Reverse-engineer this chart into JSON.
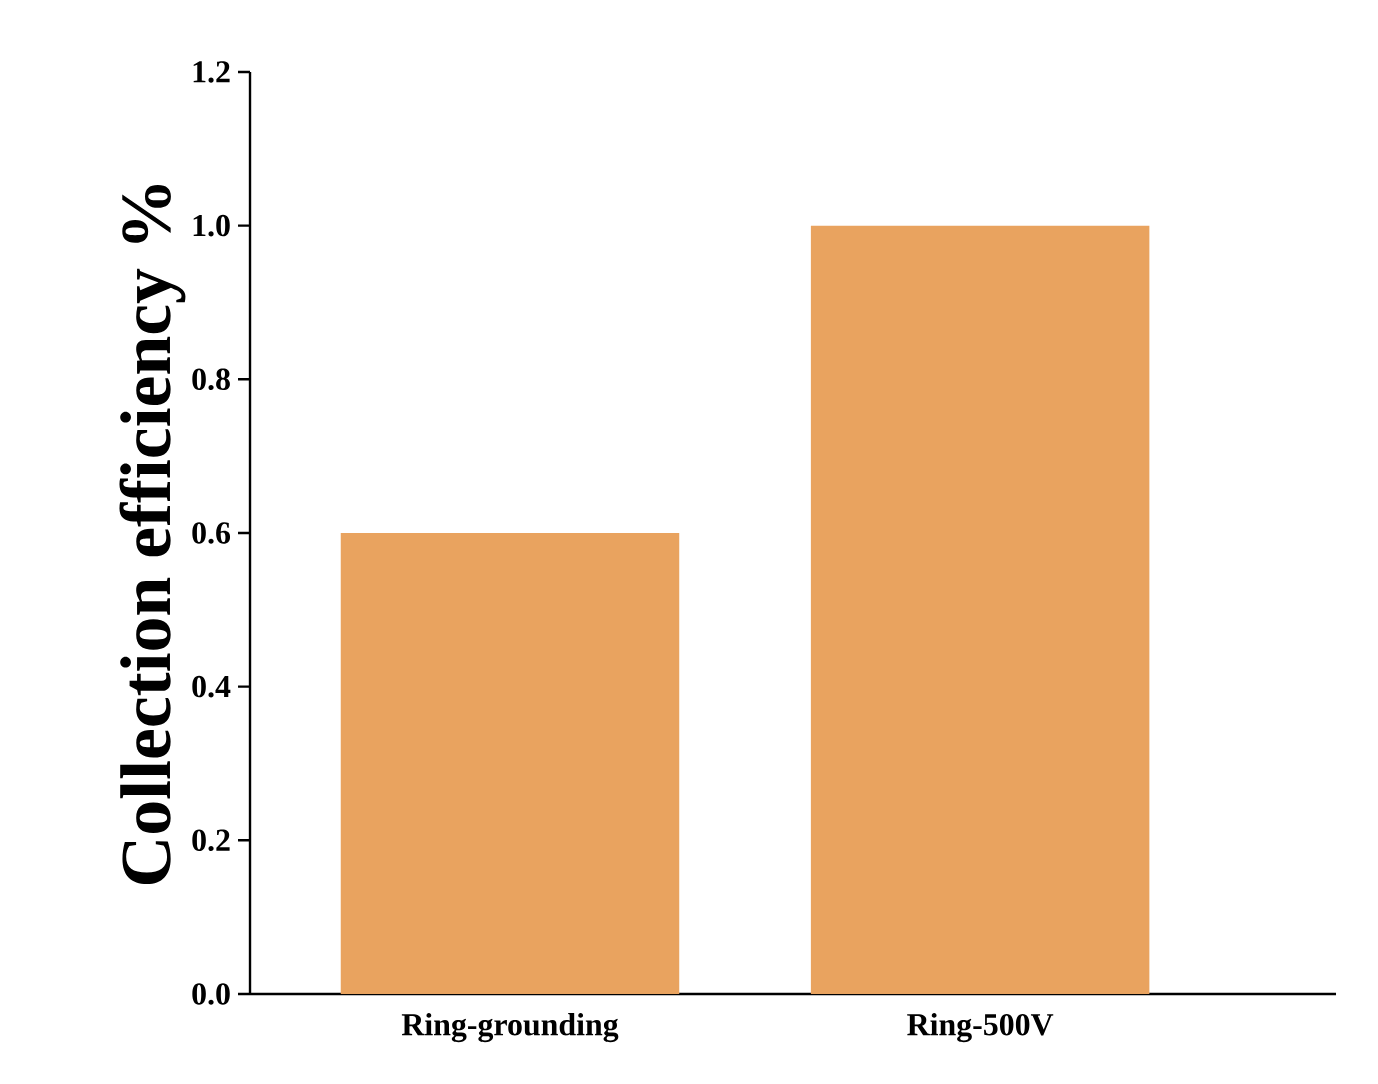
{
  "chart_data": {
    "type": "bar",
    "ylabel": "Collection efficiency %",
    "categories": [
      "Ring-grounding",
      "Ring-500V"
    ],
    "values": [
      0.6,
      1.0
    ],
    "color": "#e9a35f",
    "ylim": [
      0,
      1.2
    ],
    "yticks": [
      {
        "value": 0,
        "label": "0.0"
      },
      0.2,
      0.4,
      0.6,
      0.8,
      {
        "value": 1,
        "label": "1.0"
      },
      1.2
    ],
    "grid": false
  }
}
